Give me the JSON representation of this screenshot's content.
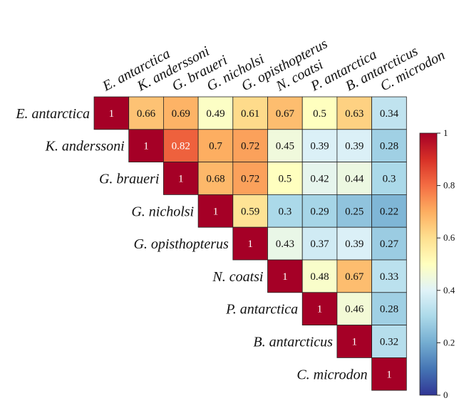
{
  "chart_data": {
    "type": "heatmap",
    "title": "",
    "labels": [
      "E. antarctica",
      "K. anderssoni",
      "G. braueri",
      "G. nicholsi",
      "G. opisthopterus",
      "N. coatsi",
      "P. antarctica",
      "B. antarcticus",
      "C. microdon"
    ],
    "shape": "upper-triangle",
    "matrix": [
      [
        1,
        0.66,
        0.69,
        0.49,
        0.61,
        0.67,
        0.5,
        0.63,
        0.34
      ],
      [
        null,
        1,
        0.82,
        0.7,
        0.72,
        0.45,
        0.39,
        0.39,
        0.28
      ],
      [
        null,
        null,
        1,
        0.68,
        0.72,
        0.5,
        0.42,
        0.44,
        0.3
      ],
      [
        null,
        null,
        null,
        1,
        0.59,
        0.3,
        0.29,
        0.25,
        0.22
      ],
      [
        null,
        null,
        null,
        null,
        1,
        0.43,
        0.37,
        0.39,
        0.27
      ],
      [
        null,
        null,
        null,
        null,
        null,
        1,
        0.48,
        0.67,
        0.33
      ],
      [
        null,
        null,
        null,
        null,
        null,
        null,
        1,
        0.46,
        0.28
      ],
      [
        null,
        null,
        null,
        null,
        null,
        null,
        null,
        1,
        0.32
      ],
      [
        null,
        null,
        null,
        null,
        null,
        null,
        null,
        null,
        1
      ]
    ],
    "colorbar": {
      "range": [
        0,
        1
      ],
      "ticks": [
        "0",
        "0.2",
        "0.4",
        "0.6",
        "0.8",
        "1"
      ],
      "tick_values": [
        0,
        0.2,
        0.4,
        0.6,
        0.8,
        1
      ],
      "colormap": "RdYlBu_r"
    }
  }
}
